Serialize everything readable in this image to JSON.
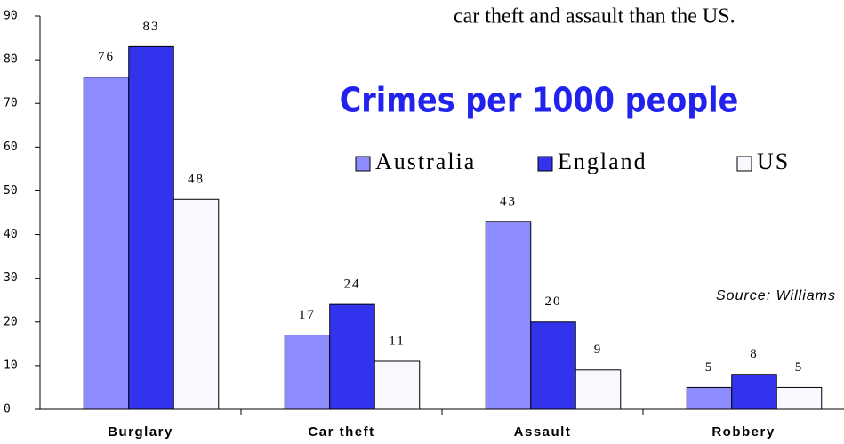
{
  "chart_data": {
    "type": "bar",
    "title": "Crimes per 1000 people",
    "annotation": "car theft and assault than the US.",
    "source": "Source: Williams",
    "categories": [
      "Burglary",
      "Car theft",
      "Assault",
      "Robbery"
    ],
    "series": [
      {
        "name": "Australia",
        "color": "#8c8cff",
        "values": [
          76,
          17,
          43,
          5
        ]
      },
      {
        "name": "England",
        "color": "#3333ee",
        "values": [
          83,
          24,
          20,
          8
        ]
      },
      {
        "name": "US",
        "color": "#f8f8ff",
        "values": [
          48,
          11,
          9,
          5
        ]
      }
    ],
    "ylim": [
      0,
      90
    ],
    "yticks": [
      0,
      10,
      20,
      30,
      40,
      50,
      60,
      70,
      80,
      90
    ],
    "legend": "top-right",
    "grid": false
  }
}
